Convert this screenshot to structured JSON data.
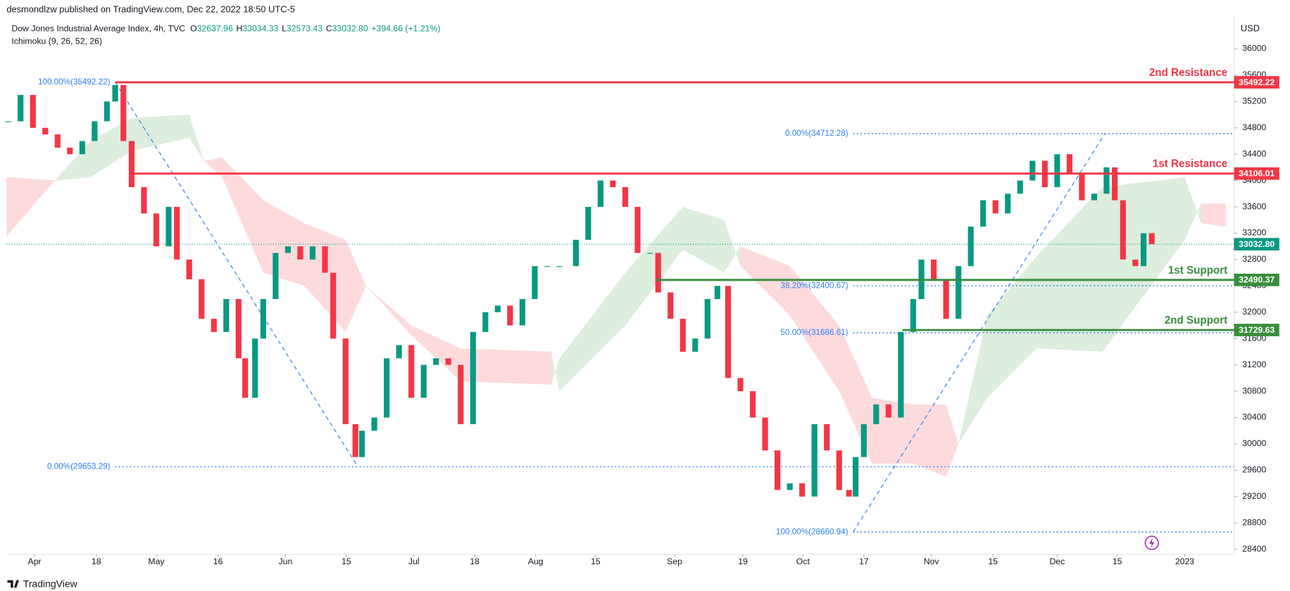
{
  "header": {
    "publisher": "desmondlzw published on TradingView.com, Dec 22, 2022 18:50 UTC-5",
    "symbol": "Dow Jones Industrial Average Index, 4h, TVC",
    "ohlc": [
      {
        "label": "O",
        "value": "32637.96"
      },
      {
        "label": "H",
        "value": "33034.33"
      },
      {
        "label": "L",
        "value": "32573.43"
      },
      {
        "label": "C",
        "value": "33032.80"
      }
    ],
    "change": "+394.66 (+1.21%)",
    "indicator": "Ichimoku (9, 26, 52, 26)",
    "currency": "USD",
    "brand": "TradingView"
  },
  "chart_data": {
    "type": "candlestick",
    "up_color": "#089981",
    "down_color": "#f23645",
    "x": [
      0.4,
      3.4,
      6.4,
      9.4,
      12.4,
      15.4,
      18.4,
      21.4,
      24.4,
      26.4,
      28.4,
      30.4,
      33.4,
      36.4,
      39.4,
      41.4,
      44.4,
      47.4,
      50.4,
      53.4,
      56.4,
      58,
      60.4,
      62.4,
      65.4,
      68.4,
      71.4,
      74.4,
      77.4,
      79.4,
      82.4,
      84.8,
      86.4,
      89.4,
      92.4,
      95.4,
      98.4,
      101.4,
      104.4,
      107.4,
      110.4,
      113.4,
      116.4,
      119.4,
      122.4,
      125.4,
      128.4,
      131.4,
      134.4,
      138.4,
      141.4,
      144.4,
      147.4,
      150.4,
      153.4,
      156.4,
      158.4,
      161.4,
      164.4,
      167.4,
      170.4,
      172.8,
      175.4,
      178.4,
      181.4,
      184.4,
      187.4,
      190.4,
      193.4,
      196.4,
      199.4,
      202.4,
      204.8,
      206.4,
      208.4,
      211.4,
      214.4,
      217.4,
      220.4,
      222.4,
      225.4,
      228.4,
      231.4,
      234.4,
      237.4,
      240.4,
      243.4,
      246.4,
      249.4,
      252.4,
      255.4,
      258.4,
      261.4,
      264.4,
      267.4,
      269.4,
      271.4,
      274.4,
      276.4,
      278.4
    ],
    "close": [
      34900,
      35300,
      34800,
      34700,
      34500,
      34400,
      34600,
      34900,
      35200,
      35450,
      34600,
      33900,
      33500,
      33000,
      33600,
      32800,
      32500,
      31900,
      31700,
      32200,
      31300,
      30700,
      31600,
      32200,
      32900,
      33000,
      32800,
      33000,
      32600,
      31600,
      30300,
      29800,
      30200,
      30400,
      31300,
      31500,
      30700,
      31200,
      31300,
      31200,
      30300,
      31700,
      32000,
      32100,
      31800,
      32200,
      32700,
      32700,
      32700,
      33100,
      33600,
      34000,
      33900,
      33600,
      32900,
      32900,
      32300,
      31900,
      31400,
      31600,
      32200,
      32400,
      31000,
      30800,
      30400,
      29900,
      29300,
      29400,
      29200,
      30300,
      29900,
      29300,
      29200,
      29800,
      30300,
      30600,
      30400,
      31700,
      32200,
      32800,
      32500,
      31900,
      32700,
      33300,
      33700,
      33500,
      33800,
      34000,
      34300,
      33900,
      34400,
      34100,
      33700,
      33800,
      34200,
      33700,
      32800,
      32700,
      33200,
      33032.8
    ],
    "cloud": {
      "up_color": "#43a047",
      "down_color": "#f23645",
      "x": [
        0,
        12.4,
        20.4,
        30.4,
        44.4,
        48,
        52.4,
        62.4,
        72.4,
        82.4,
        87.4,
        98.4,
        110.4,
        132.4,
        134.4,
        150.4,
        164.4,
        174.4,
        178.4,
        190.4,
        202.4,
        210.4,
        220.4,
        228.4,
        231.4,
        238.4,
        250.4,
        266.4,
        286.4,
        290.4,
        296.4
      ],
      "span_a": [
        33150,
        34050,
        34600,
        34950,
        35000,
        34300,
        34050,
        32600,
        32400,
        31700,
        32400,
        31650,
        30950,
        30900,
        31300,
        32600,
        33600,
        33400,
        32700,
        31950,
        30800,
        29700,
        29700,
        29500,
        30000,
        31950,
        32850,
        33900,
        34050,
        33350,
        33300
      ],
      "span_b": [
        34050,
        34000,
        34050,
        34450,
        34650,
        34300,
        34350,
        33700,
        33350,
        33100,
        32400,
        31800,
        31450,
        31400,
        30800,
        31800,
        32950,
        32600,
        33000,
        32700,
        31800,
        30700,
        30600,
        30600,
        30000,
        30700,
        31450,
        31400,
        33100,
        33650,
        33650
      ]
    },
    "levels": [
      {
        "name": "2nd Resistance",
        "value": 35492.22,
        "color": "#f23645",
        "from_x": 26.4
      },
      {
        "name": "1st Resistance",
        "value": 34106.01,
        "color": "#f23645",
        "from_x": 29.8
      },
      {
        "name": "1st Support",
        "value": 32490.37,
        "color": "#388e3c",
        "from_x": 157.8
      },
      {
        "name": "2nd Support",
        "value": 31729.63,
        "color": "#388e3c",
        "from_x": 217.8
      }
    ],
    "fibs": [
      {
        "color": "#2f80ed",
        "from_x": 26.4,
        "trend": {
          "x": [
            26.4,
            85.4
          ],
          "values": [
            35492.22,
            29653.29
          ]
        },
        "lines": [
          {
            "label": "100.00%(35492.22)",
            "value": 35492.22
          },
          {
            "label": "0.00%(29653.29)",
            "value": 29653.29
          }
        ]
      },
      {
        "color": "#2f80ed",
        "from_x": 205.8,
        "trend": {
          "x": [
            205.8,
            267
          ],
          "values": [
            28660.94,
            34712.28
          ]
        },
        "lines": [
          {
            "label": "0.00%(34712.28)",
            "value": 34712.28
          },
          {
            "label": "38.20%(32400.67)",
            "value": 32400.67
          },
          {
            "label": "50.00%(31686.61)",
            "value": 31686.61
          },
          {
            "label": "100.00%(28660.94)",
            "value": 28660.94
          }
        ]
      }
    ],
    "last_price": {
      "value": 33032.8,
      "label": "33032.80",
      "color": "#089981"
    },
    "xlim": [
      0,
      298.4
    ],
    "ylim": [
      28320,
      36490
    ],
    "yticks": [
      28400,
      28800,
      29200,
      29600,
      30000,
      30400,
      30800,
      31200,
      31600,
      32000,
      32400,
      32800,
      33200,
      33600,
      34000,
      34400,
      34800,
      35200,
      35600,
      36000
    ],
    "xticks": [
      {
        "value": 6.8,
        "label": "Apr"
      },
      {
        "value": 21.8,
        "label": "18"
      },
      {
        "value": 36.4,
        "label": "May"
      },
      {
        "value": 51.4,
        "label": "16"
      },
      {
        "value": 67.8,
        "label": "Jun"
      },
      {
        "value": 82.6,
        "label": "15"
      },
      {
        "value": 99,
        "label": "Jul"
      },
      {
        "value": 113.8,
        "label": "18"
      },
      {
        "value": 128.6,
        "label": "Aug"
      },
      {
        "value": 143.2,
        "label": "15"
      },
      {
        "value": 162.4,
        "label": "Sep"
      },
      {
        "value": 179,
        "label": "19"
      },
      {
        "value": 193.6,
        "label": "Oct"
      },
      {
        "value": 208.4,
        "label": "17"
      },
      {
        "value": 224.8,
        "label": "Nov"
      },
      {
        "value": 239.8,
        "label": "15"
      },
      {
        "value": 255.4,
        "label": "Dec"
      },
      {
        "value": 270,
        "label": "15"
      },
      {
        "value": 286.4,
        "label": "2023"
      }
    ]
  }
}
